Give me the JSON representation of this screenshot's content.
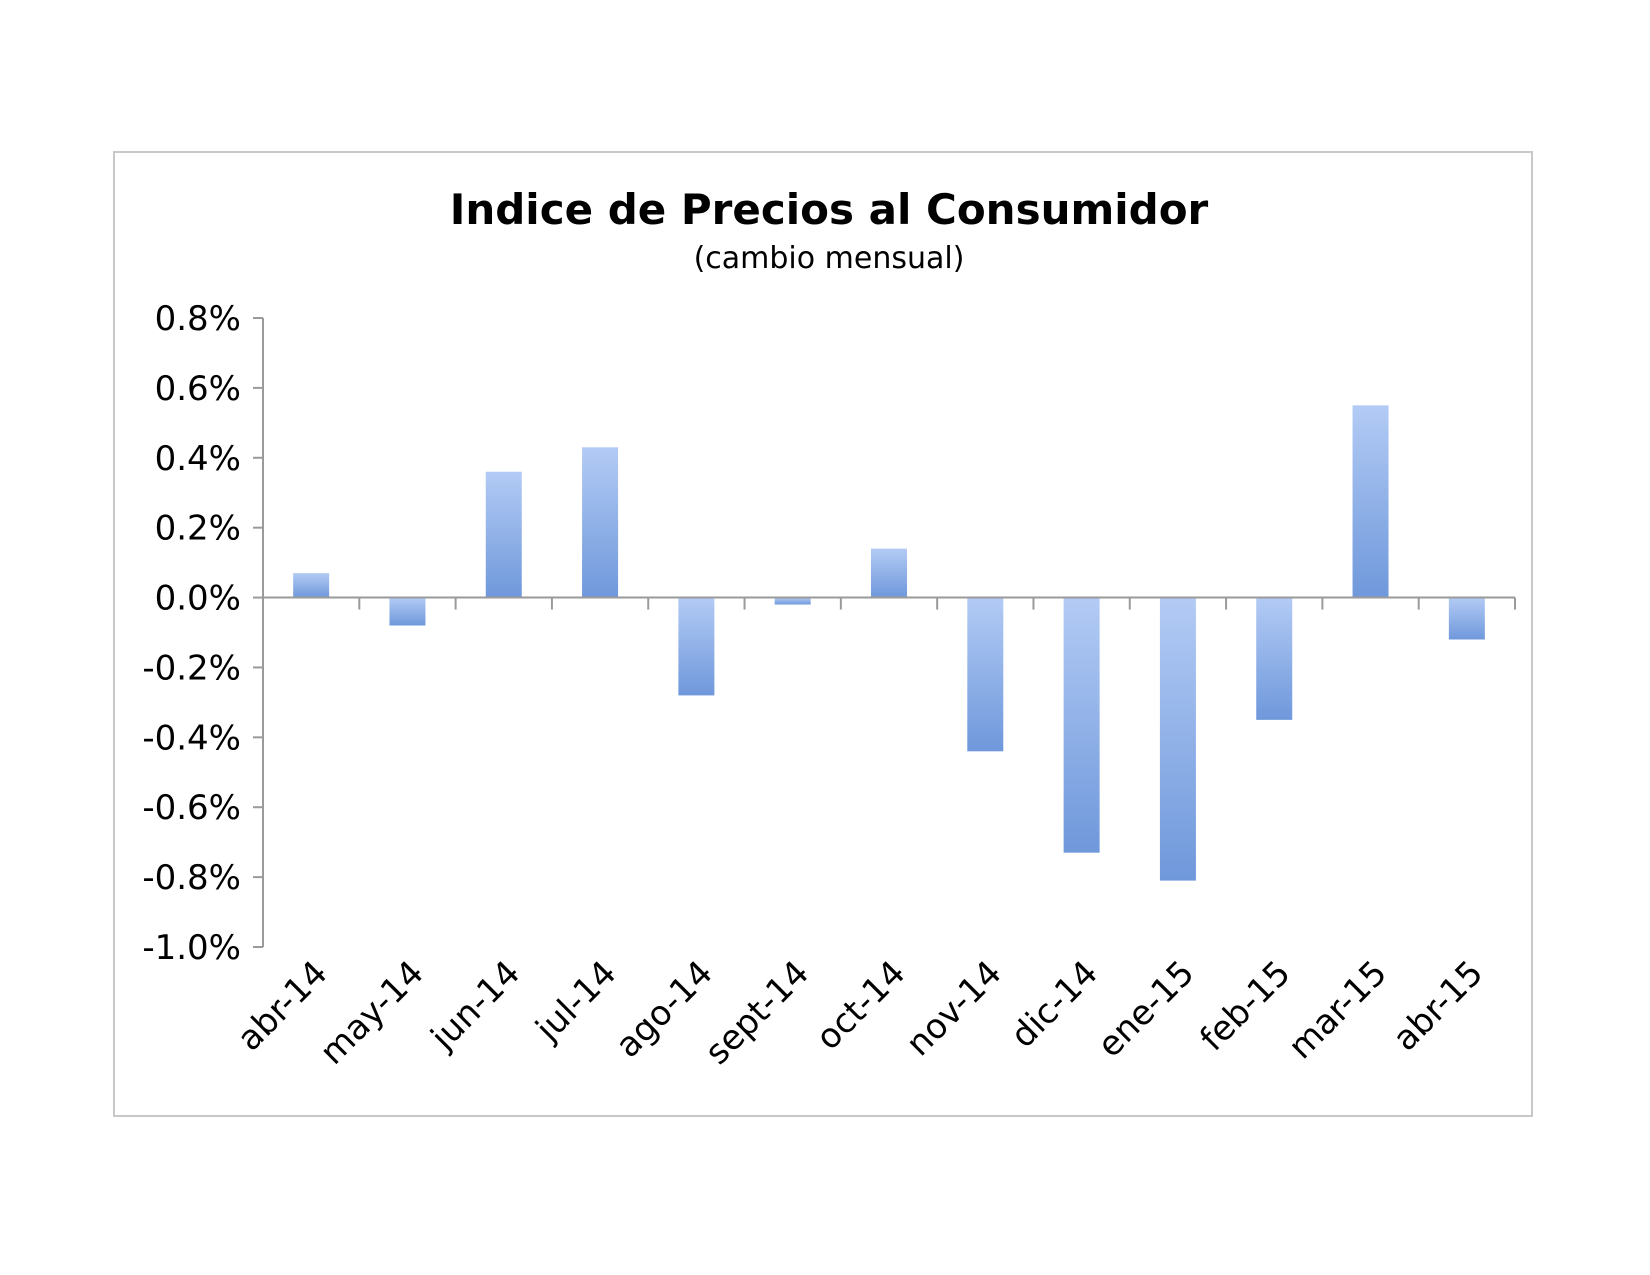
{
  "chart_data": {
    "type": "bar",
    "title": "Indice de Precios al Consumidor",
    "subtitle": "(cambio mensual)",
    "xlabel": "",
    "ylabel": "",
    "categories": [
      "abr-14",
      "may-14",
      "jun-14",
      "jul-14",
      "ago-14",
      "sept-14",
      "oct-14",
      "nov-14",
      "dic-14",
      "ene-15",
      "feb-15",
      "mar-15",
      "abr-15"
    ],
    "values": [
      0.07,
      -0.08,
      0.36,
      0.43,
      -0.28,
      -0.02,
      0.14,
      -0.44,
      -0.73,
      -0.81,
      -0.35,
      0.55,
      -0.12
    ],
    "ylim": [
      -1.0,
      0.8
    ],
    "yticks": [
      "0.8%",
      "0.6%",
      "0.4%",
      "0.2%",
      "0.0%",
      "-0.2%",
      "-0.4%",
      "-0.6%",
      "-0.8%",
      "-1.0%"
    ],
    "ytick_values": [
      0.8,
      0.6,
      0.4,
      0.2,
      0.0,
      -0.2,
      -0.4,
      -0.6,
      -0.8,
      -1.0
    ],
    "grid": false,
    "legend": "none",
    "colors": {
      "bar_light": "#b3cbf5",
      "bar_dark": "#6f98db",
      "axis": "#9a9a9a",
      "frame": "#c8c8c8"
    }
  }
}
